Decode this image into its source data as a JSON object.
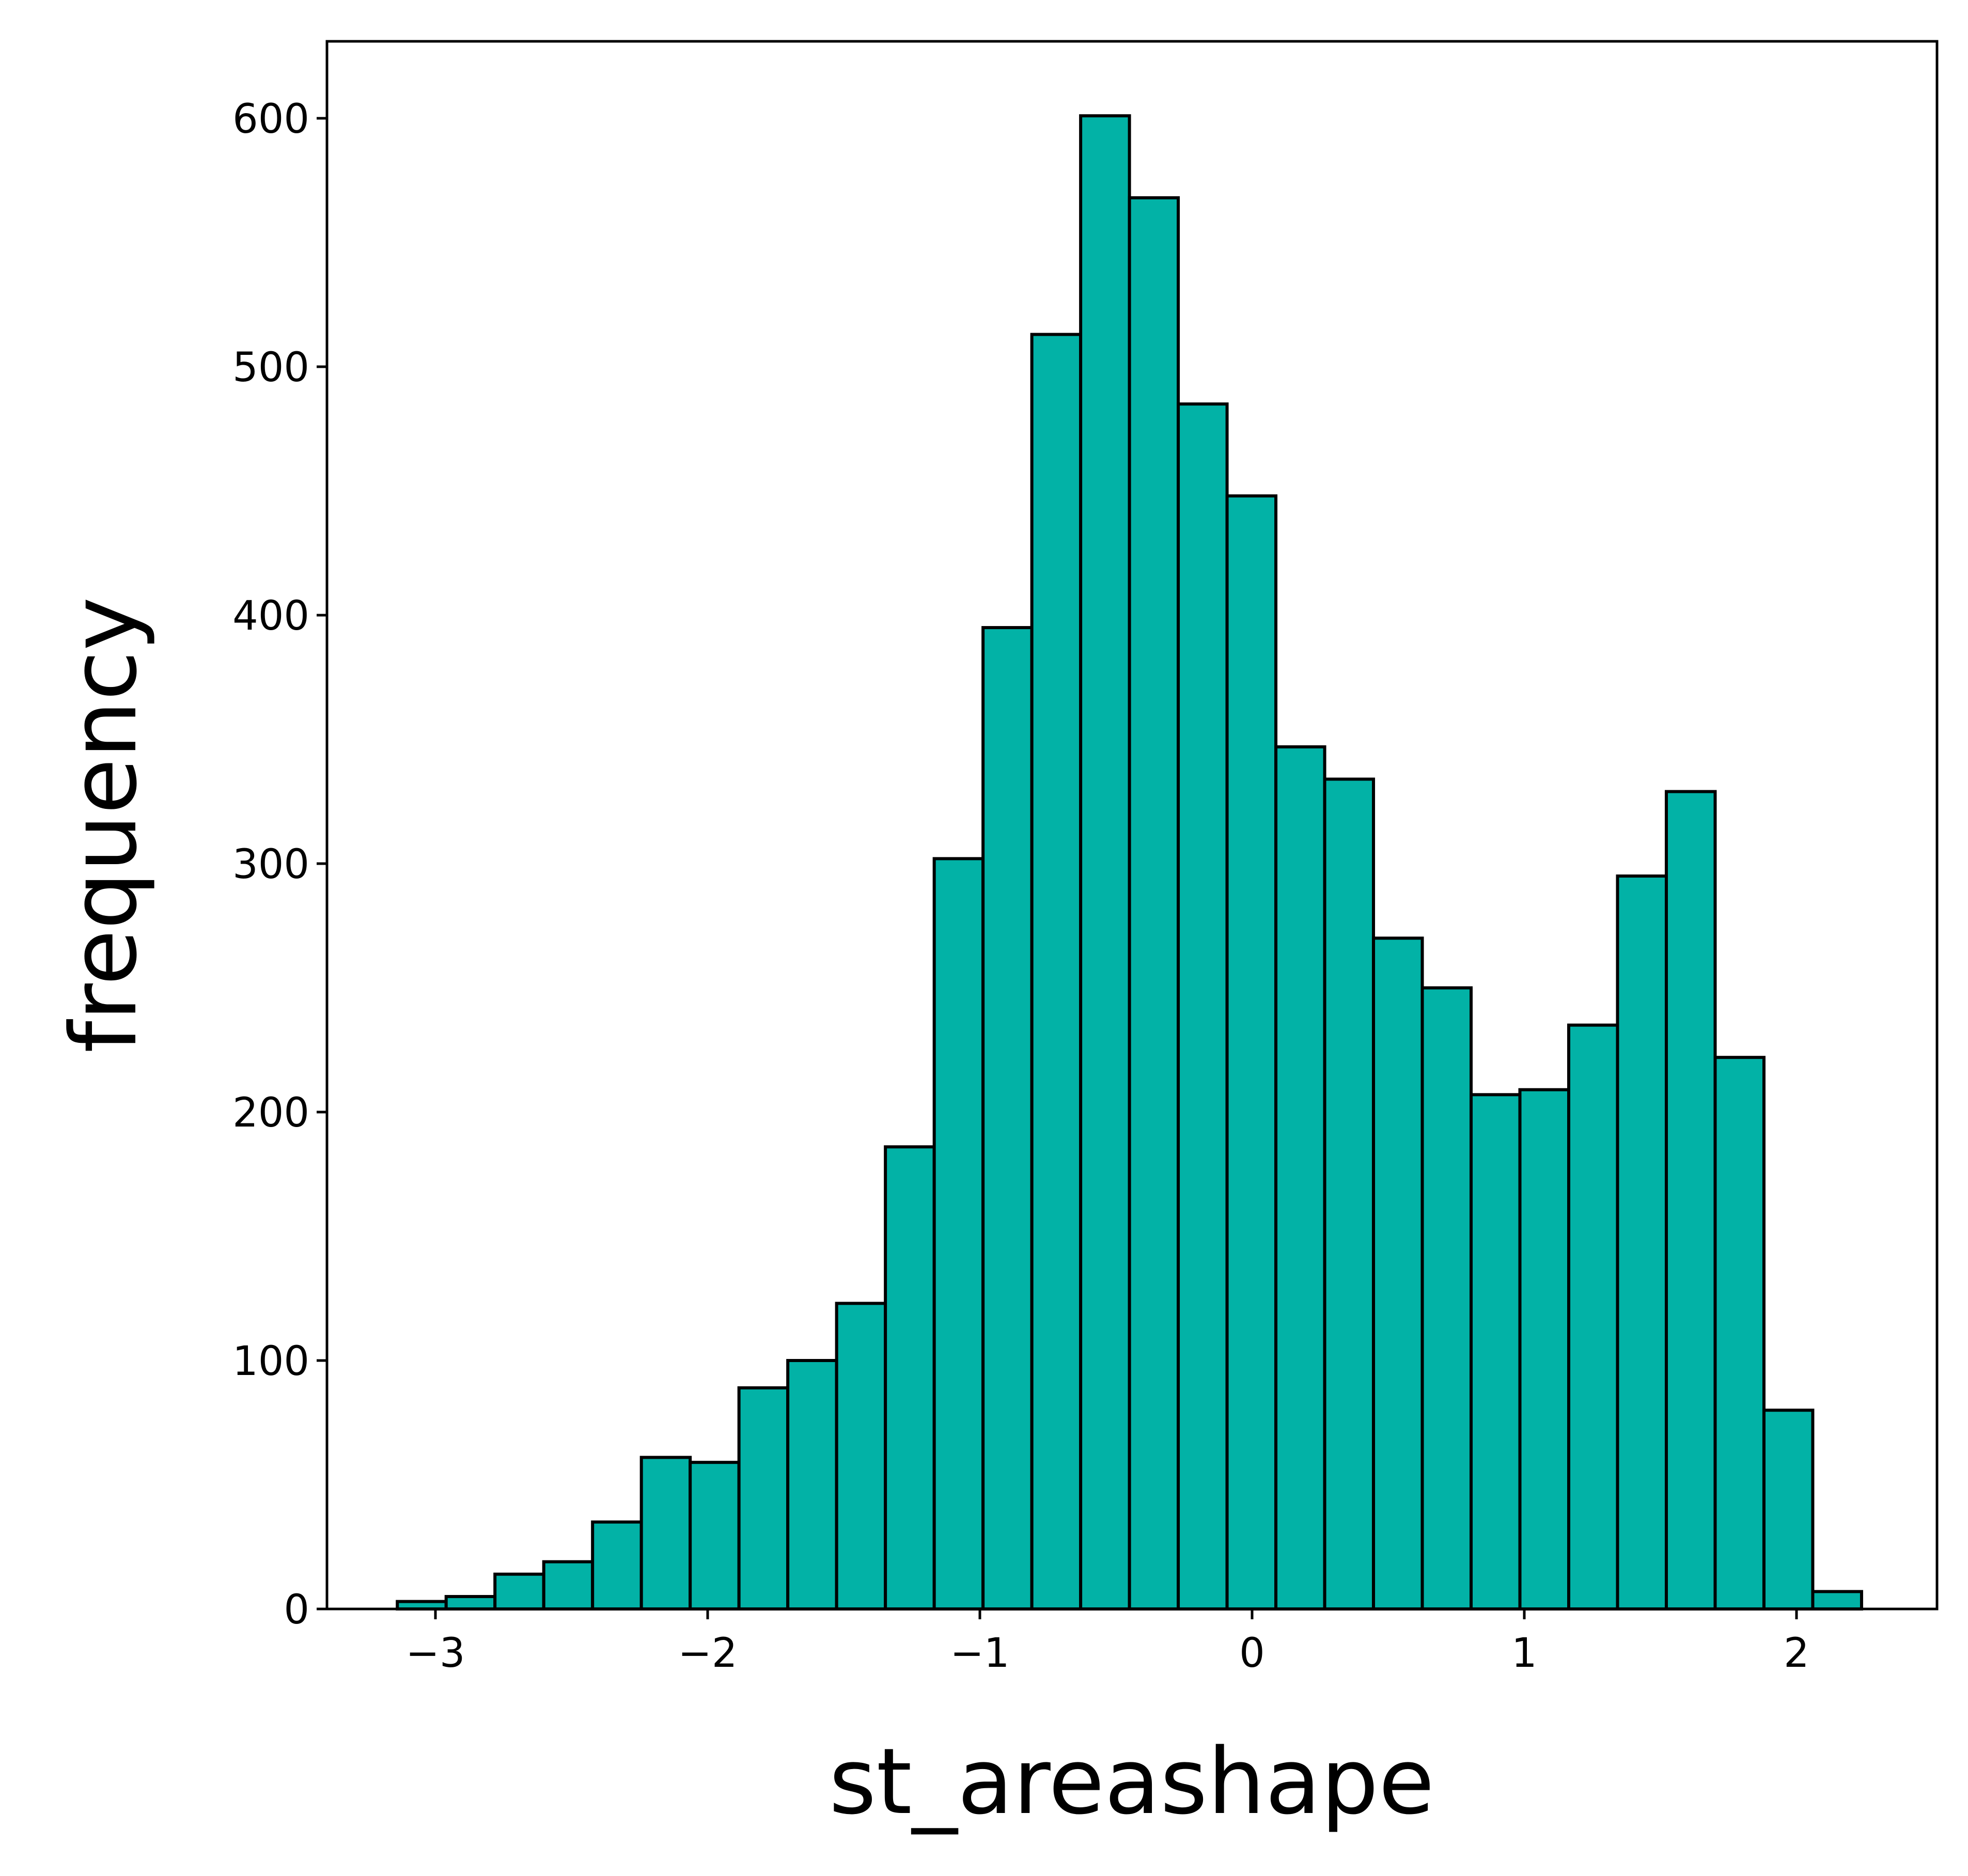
{
  "chart_data": {
    "type": "bar",
    "subtype": "histogram",
    "xlabel": "st_areashape",
    "ylabel": "frequency",
    "xlim": [
      -3.4,
      2.5
    ],
    "ylim": [
      0,
      630
    ],
    "x_ticks": [
      -3,
      -2,
      -1,
      0,
      1,
      2
    ],
    "x_tick_labels": [
      "−3",
      "−2",
      "−1",
      "0",
      "1",
      "2"
    ],
    "y_ticks": [
      0,
      100,
      200,
      300,
      400,
      500,
      600
    ],
    "y_tick_labels": [
      "0",
      "100",
      "200",
      "300",
      "400",
      "500",
      "600"
    ],
    "bin_start": -3.14,
    "bin_width": 0.1793,
    "values": [
      3,
      5,
      14,
      19,
      35,
      61,
      59,
      89,
      100,
      123,
      186,
      302,
      395,
      513,
      601,
      568,
      485,
      448,
      347,
      334,
      270,
      250,
      207,
      209,
      235,
      295,
      329,
      222,
      80,
      7
    ],
    "colors": {
      "bar_fill": "#02b2a6",
      "bar_edge": "#000000",
      "axis": "#000000",
      "background": "#ffffff"
    },
    "grid": false,
    "legend": "none"
  }
}
